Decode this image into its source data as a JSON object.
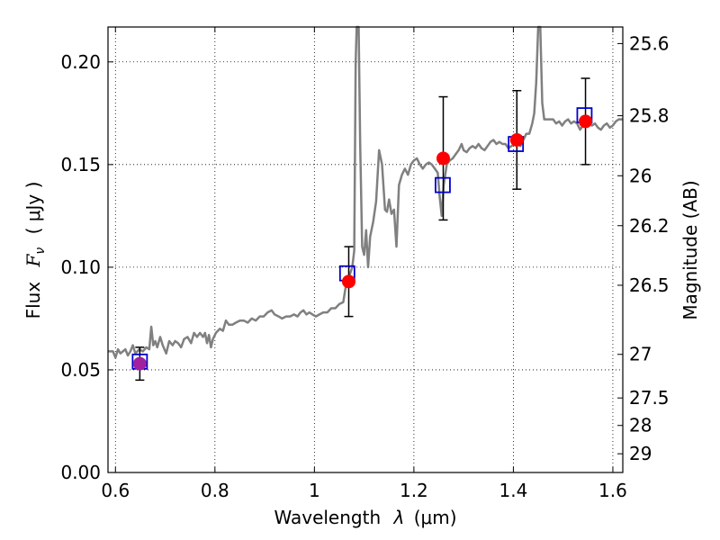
{
  "chart_data": {
    "type": "scatter",
    "xlabel_prefix": "Wavelength",
    "xlabel_symbol": "λ",
    "xlabel_unit": "(μm)",
    "ylabel_prefix": "Flux",
    "ylabel_symbol": "F",
    "ylabel_subscript": "ν",
    "ylabel_unit": "( μJy )",
    "y2label": "Magnitude (AB)",
    "xlim": [
      0.585,
      1.62
    ],
    "ylim": [
      0.0,
      0.217
    ],
    "grid": true,
    "xticks": [
      {
        "value": 0.6,
        "label": "0.6"
      },
      {
        "value": 0.8,
        "label": "0.8"
      },
      {
        "value": 1.0,
        "label": "1"
      },
      {
        "value": 1.2,
        "label": "1.2"
      },
      {
        "value": 1.4,
        "label": "1.4"
      },
      {
        "value": 1.6,
        "label": "1.6"
      }
    ],
    "yticks": [
      {
        "value": 0.0,
        "label": "0.00"
      },
      {
        "value": 0.05,
        "label": "0.05"
      },
      {
        "value": 0.1,
        "label": "0.10"
      },
      {
        "value": 0.15,
        "label": "0.15"
      },
      {
        "value": 0.2,
        "label": "0.20"
      }
    ],
    "y2ticks": [
      {
        "value": 25.6,
        "label": "25.6"
      },
      {
        "value": 25.8,
        "label": "25.8"
      },
      {
        "value": 26.0,
        "label": "26"
      },
      {
        "value": 26.2,
        "label": "26.2"
      },
      {
        "value": 26.5,
        "label": "26.5"
      },
      {
        "value": 27.0,
        "label": "27"
      },
      {
        "value": 27.5,
        "label": "27.5"
      },
      {
        "value": 28.0,
        "label": "28"
      },
      {
        "value": 29.0,
        "label": "29"
      }
    ],
    "model_spectrum": {
      "color": "#808080",
      "points": [
        [
          0.585,
          0.059
        ],
        [
          0.595,
          0.059
        ],
        [
          0.6,
          0.056
        ],
        [
          0.605,
          0.06
        ],
        [
          0.61,
          0.058
        ],
        [
          0.615,
          0.059
        ],
        [
          0.62,
          0.06
        ],
        [
          0.625,
          0.057
        ],
        [
          0.63,
          0.059
        ],
        [
          0.635,
          0.062
        ],
        [
          0.64,
          0.058
        ],
        [
          0.648,
          0.06
        ],
        [
          0.655,
          0.059
        ],
        [
          0.662,
          0.061
        ],
        [
          0.668,
          0.06
        ],
        [
          0.672,
          0.071
        ],
        [
          0.676,
          0.062
        ],
        [
          0.68,
          0.064
        ],
        [
          0.684,
          0.061
        ],
        [
          0.69,
          0.066
        ],
        [
          0.695,
          0.062
        ],
        [
          0.702,
          0.058
        ],
        [
          0.708,
          0.064
        ],
        [
          0.715,
          0.062
        ],
        [
          0.72,
          0.064
        ],
        [
          0.726,
          0.063
        ],
        [
          0.732,
          0.061
        ],
        [
          0.738,
          0.065
        ],
        [
          0.745,
          0.066
        ],
        [
          0.752,
          0.063
        ],
        [
          0.758,
          0.068
        ],
        [
          0.764,
          0.066
        ],
        [
          0.77,
          0.068
        ],
        [
          0.776,
          0.066
        ],
        [
          0.78,
          0.068
        ],
        [
          0.784,
          0.063
        ],
        [
          0.788,
          0.067
        ],
        [
          0.792,
          0.061
        ],
        [
          0.796,
          0.065
        ],
        [
          0.802,
          0.068
        ],
        [
          0.81,
          0.07
        ],
        [
          0.816,
          0.069
        ],
        [
          0.822,
          0.074
        ],
        [
          0.828,
          0.072
        ],
        [
          0.835,
          0.072
        ],
        [
          0.842,
          0.073
        ],
        [
          0.85,
          0.074
        ],
        [
          0.858,
          0.074
        ],
        [
          0.866,
          0.073
        ],
        [
          0.874,
          0.075
        ],
        [
          0.882,
          0.074
        ],
        [
          0.89,
          0.076
        ],
        [
          0.898,
          0.076
        ],
        [
          0.906,
          0.078
        ],
        [
          0.914,
          0.079
        ],
        [
          0.92,
          0.077
        ],
        [
          0.928,
          0.076
        ],
        [
          0.935,
          0.075
        ],
        [
          0.943,
          0.076
        ],
        [
          0.951,
          0.076
        ],
        [
          0.959,
          0.077
        ],
        [
          0.966,
          0.076
        ],
        [
          0.972,
          0.078
        ],
        [
          0.978,
          0.079
        ],
        [
          0.984,
          0.077
        ],
        [
          0.99,
          0.078
        ],
        [
          0.996,
          0.077
        ],
        [
          1.003,
          0.076
        ],
        [
          1.01,
          0.077
        ],
        [
          1.018,
          0.078
        ],
        [
          1.026,
          0.078
        ],
        [
          1.034,
          0.08
        ],
        [
          1.042,
          0.08
        ],
        [
          1.05,
          0.082
        ],
        [
          1.058,
          0.083
        ],
        [
          1.064,
          0.092
        ],
        [
          1.068,
          0.094
        ],
        [
          1.072,
          0.097
        ],
        [
          1.076,
          0.1
        ],
        [
          1.08,
          0.108
        ],
        [
          1.083,
          0.2
        ],
        [
          1.085,
          0.217
        ],
        [
          1.089,
          0.217
        ],
        [
          1.092,
          0.16
        ],
        [
          1.096,
          0.11
        ],
        [
          1.1,
          0.106
        ],
        [
          1.104,
          0.118
        ],
        [
          1.108,
          0.1
        ],
        [
          1.112,
          0.115
        ],
        [
          1.118,
          0.122
        ],
        [
          1.124,
          0.132
        ],
        [
          1.13,
          0.157
        ],
        [
          1.136,
          0.15
        ],
        [
          1.142,
          0.128
        ],
        [
          1.146,
          0.127
        ],
        [
          1.15,
          0.133
        ],
        [
          1.155,
          0.126
        ],
        [
          1.16,
          0.128
        ],
        [
          1.165,
          0.11
        ],
        [
          1.17,
          0.14
        ],
        [
          1.176,
          0.145
        ],
        [
          1.182,
          0.148
        ],
        [
          1.188,
          0.145
        ],
        [
          1.194,
          0.15
        ],
        [
          1.2,
          0.152
        ],
        [
          1.206,
          0.153
        ],
        [
          1.212,
          0.15
        ],
        [
          1.218,
          0.148
        ],
        [
          1.224,
          0.15
        ],
        [
          1.23,
          0.151
        ],
        [
          1.236,
          0.15
        ],
        [
          1.242,
          0.148
        ],
        [
          1.248,
          0.146
        ],
        [
          1.252,
          0.134
        ],
        [
          1.256,
          0.125
        ],
        [
          1.26,
          0.14
        ],
        [
          1.266,
          0.15
        ],
        [
          1.272,
          0.152
        ],
        [
          1.278,
          0.153
        ],
        [
          1.284,
          0.155
        ],
        [
          1.29,
          0.157
        ],
        [
          1.296,
          0.16
        ],
        [
          1.3,
          0.157
        ],
        [
          1.306,
          0.156
        ],
        [
          1.312,
          0.158
        ],
        [
          1.318,
          0.159
        ],
        [
          1.324,
          0.158
        ],
        [
          1.33,
          0.16
        ],
        [
          1.336,
          0.158
        ],
        [
          1.342,
          0.157
        ],
        [
          1.348,
          0.159
        ],
        [
          1.354,
          0.161
        ],
        [
          1.36,
          0.162
        ],
        [
          1.366,
          0.16
        ],
        [
          1.372,
          0.161
        ],
        [
          1.378,
          0.16
        ],
        [
          1.384,
          0.16
        ],
        [
          1.39,
          0.158
        ],
        [
          1.396,
          0.159
        ],
        [
          1.402,
          0.16
        ],
        [
          1.408,
          0.161
        ],
        [
          1.414,
          0.159
        ],
        [
          1.42,
          0.162
        ],
        [
          1.426,
          0.165
        ],
        [
          1.432,
          0.165
        ],
        [
          1.438,
          0.17
        ],
        [
          1.442,
          0.175
        ],
        [
          1.446,
          0.19
        ],
        [
          1.45,
          0.217
        ],
        [
          1.454,
          0.217
        ],
        [
          1.458,
          0.18
        ],
        [
          1.462,
          0.172
        ],
        [
          1.468,
          0.172
        ],
        [
          1.474,
          0.172
        ],
        [
          1.48,
          0.172
        ],
        [
          1.486,
          0.17
        ],
        [
          1.492,
          0.171
        ],
        [
          1.498,
          0.169
        ],
        [
          1.504,
          0.171
        ],
        [
          1.51,
          0.172
        ],
        [
          1.516,
          0.17
        ],
        [
          1.522,
          0.171
        ],
        [
          1.528,
          0.17
        ],
        [
          1.534,
          0.167
        ],
        [
          1.54,
          0.169
        ],
        [
          1.546,
          0.17
        ],
        [
          1.552,
          0.171
        ],
        [
          1.558,
          0.169
        ],
        [
          1.564,
          0.17
        ],
        [
          1.57,
          0.168
        ],
        [
          1.576,
          0.167
        ],
        [
          1.582,
          0.169
        ],
        [
          1.588,
          0.17
        ],
        [
          1.594,
          0.168
        ],
        [
          1.6,
          0.169
        ],
        [
          1.606,
          0.171
        ],
        [
          1.612,
          0.172
        ],
        [
          1.62,
          0.172
        ]
      ]
    },
    "model_photometry": {
      "color": "#0000cc",
      "marker": "open-square",
      "points": [
        {
          "x": 0.649,
          "y": 0.054
        },
        {
          "x": 1.066,
          "y": 0.097
        },
        {
          "x": 1.258,
          "y": 0.14
        },
        {
          "x": 1.405,
          "y": 0.16
        },
        {
          "x": 1.543,
          "y": 0.174
        }
      ]
    },
    "observed": {
      "color": "#ff0000",
      "marker": "filled-circle",
      "points": [
        {
          "x": 0.649,
          "y": 0.053,
          "err": 0.008
        },
        {
          "x": 1.069,
          "y": 0.093,
          "err": 0.017
        },
        {
          "x": 1.259,
          "y": 0.153,
          "err": 0.03
        },
        {
          "x": 1.407,
          "y": 0.162,
          "err": 0.024
        },
        {
          "x": 1.545,
          "y": 0.171,
          "err": 0.021
        }
      ]
    },
    "first_marker_color": "#a020a0"
  }
}
